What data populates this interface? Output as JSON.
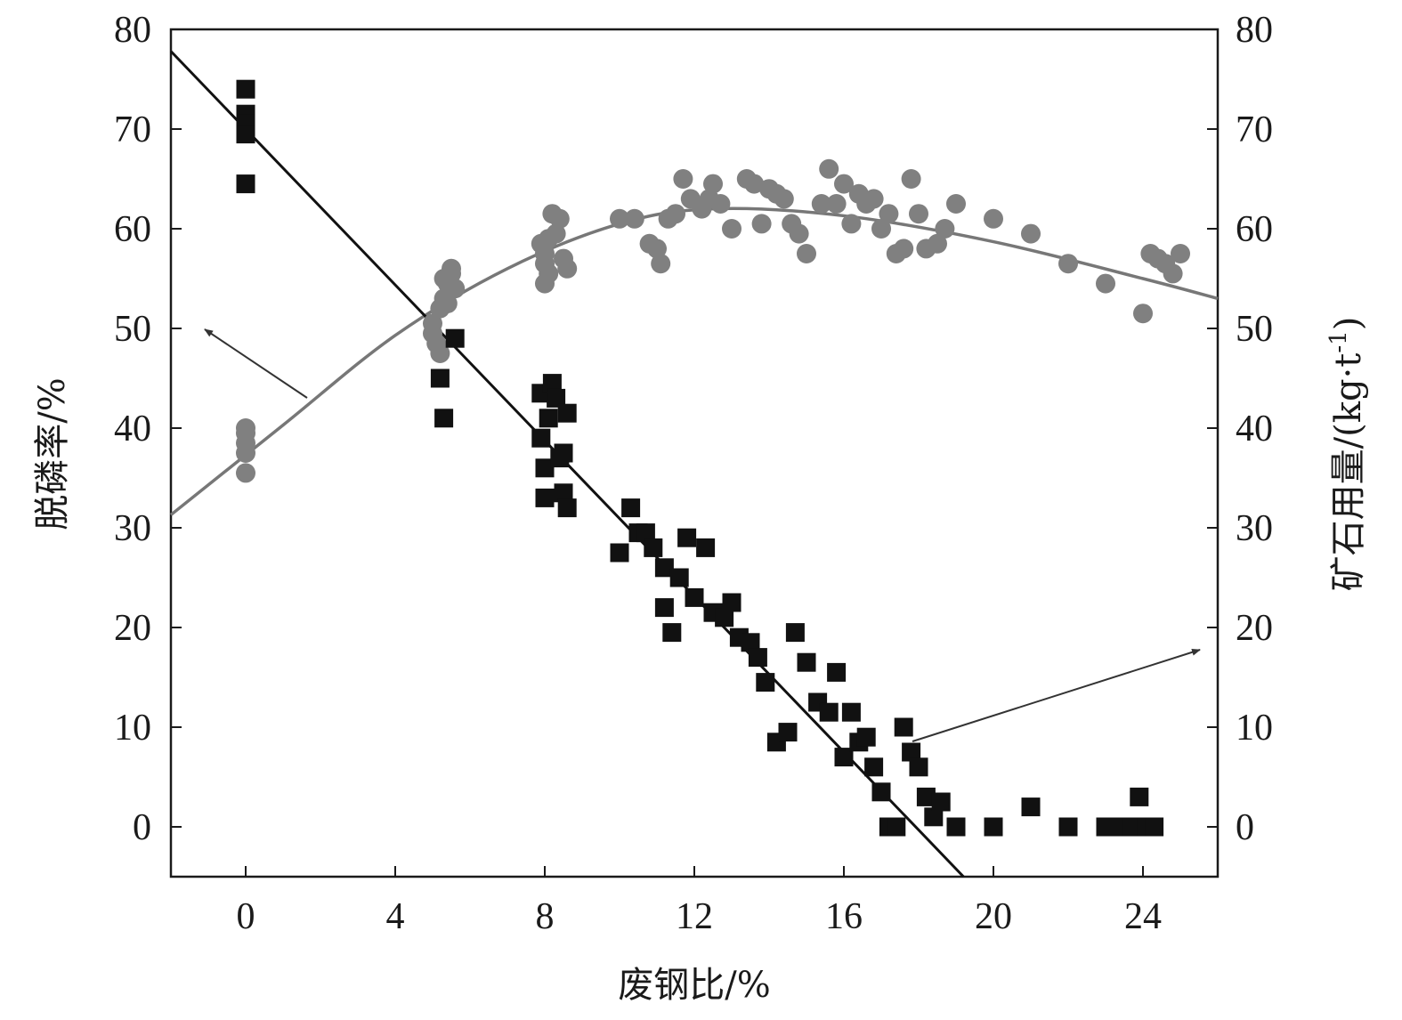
{
  "chart_data": {
    "type": "scatter",
    "title": "",
    "xlabel": "废钢比/%",
    "ylabel_left": "脱磷率/%",
    "ylabel_right_main": "矿石用量/(kg·t",
    "ylabel_right_sup": "-1",
    "ylabel_right_close": ")",
    "xlim": [
      -2,
      26
    ],
    "ylim": [
      -5,
      80
    ],
    "x_ticks": [
      0,
      4,
      8,
      12,
      16,
      20,
      24
    ],
    "y_ticks": [
      0,
      10,
      20,
      30,
      40,
      50,
      60,
      70,
      80
    ],
    "grid": false,
    "legend": "none",
    "series": [
      {
        "marker": "circle",
        "axis": "left",
        "color": "#808080",
        "points": [
          [
            0,
            40
          ],
          [
            0,
            39.5
          ],
          [
            0,
            38.5
          ],
          [
            0,
            37.5
          ],
          [
            0,
            35.5
          ],
          [
            5,
            49.5
          ],
          [
            5.1,
            48.5
          ],
          [
            5.2,
            47.5
          ],
          [
            5,
            50.5
          ],
          [
            5.2,
            52
          ],
          [
            5.3,
            53
          ],
          [
            5.4,
            54.5
          ],
          [
            5.3,
            55
          ],
          [
            5.5,
            55.5
          ],
          [
            5.5,
            56
          ],
          [
            5.6,
            54
          ],
          [
            5.4,
            52.5
          ],
          [
            7.9,
            58.5
          ],
          [
            8,
            57.5
          ],
          [
            8,
            56.5
          ],
          [
            8.1,
            55.5
          ],
          [
            8,
            54.5
          ],
          [
            8.2,
            61.5
          ],
          [
            8.4,
            61
          ],
          [
            8.5,
            57
          ],
          [
            8.6,
            56
          ],
          [
            8.3,
            59.5
          ],
          [
            8.1,
            59
          ],
          [
            10,
            61
          ],
          [
            10.4,
            61
          ],
          [
            10.8,
            58.5
          ],
          [
            11,
            58
          ],
          [
            11.1,
            56.5
          ],
          [
            11.3,
            61
          ],
          [
            11.5,
            61.5
          ],
          [
            11.7,
            65
          ],
          [
            11.9,
            63
          ],
          [
            12.2,
            62
          ],
          [
            12.5,
            64.5
          ],
          [
            12.4,
            63
          ],
          [
            12.7,
            62.5
          ],
          [
            13,
            60
          ],
          [
            13.4,
            65
          ],
          [
            13.6,
            64.5
          ],
          [
            13.8,
            60.5
          ],
          [
            14,
            64
          ],
          [
            14.2,
            63.5
          ],
          [
            14.4,
            63
          ],
          [
            14.6,
            60.5
          ],
          [
            14.8,
            59.5
          ],
          [
            15,
            57.5
          ],
          [
            15.4,
            62.5
          ],
          [
            15.6,
            66
          ],
          [
            15.8,
            62.5
          ],
          [
            16,
            64.5
          ],
          [
            16.2,
            60.5
          ],
          [
            16.4,
            63.5
          ],
          [
            16.6,
            62.5
          ],
          [
            16.8,
            63
          ],
          [
            17,
            60
          ],
          [
            17.2,
            61.5
          ],
          [
            17.4,
            57.5
          ],
          [
            17.6,
            58
          ],
          [
            17.8,
            65
          ],
          [
            18,
            61.5
          ],
          [
            18.2,
            58
          ],
          [
            18.5,
            58.5
          ],
          [
            18.7,
            60
          ],
          [
            19,
            62.5
          ],
          [
            20,
            61
          ],
          [
            21,
            59.5
          ],
          [
            22,
            56.5
          ],
          [
            23,
            54.5
          ],
          [
            24,
            51.5
          ],
          [
            24.2,
            57.5
          ],
          [
            24.4,
            57
          ],
          [
            24.6,
            56.5
          ],
          [
            24.8,
            55.5
          ],
          [
            25,
            57.5
          ]
        ]
      },
      {
        "marker": "square",
        "axis": "right",
        "color": "#111111",
        "points": [
          [
            0,
            74
          ],
          [
            0,
            71.5
          ],
          [
            0,
            70.5
          ],
          [
            0,
            69.5
          ],
          [
            0,
            64.5
          ],
          [
            5.2,
            45
          ],
          [
            5.3,
            41
          ],
          [
            5.6,
            49
          ],
          [
            7.9,
            43.5
          ],
          [
            8.2,
            44.5
          ],
          [
            8.3,
            43
          ],
          [
            8.1,
            41
          ],
          [
            7.9,
            39
          ],
          [
            8,
            36
          ],
          [
            8.4,
            37
          ],
          [
            8.5,
            37.5
          ],
          [
            8.6,
            41.5
          ],
          [
            8.5,
            33.5
          ],
          [
            8.6,
            32
          ],
          [
            8,
            33
          ],
          [
            10,
            27.5
          ],
          [
            10.3,
            32
          ],
          [
            10.5,
            29.5
          ],
          [
            10.7,
            29.5
          ],
          [
            10.9,
            28
          ],
          [
            11.2,
            26
          ],
          [
            11.6,
            25
          ],
          [
            11.2,
            22
          ],
          [
            11.4,
            19.5
          ],
          [
            11.8,
            29
          ],
          [
            12,
            23
          ],
          [
            12.3,
            28
          ],
          [
            12.5,
            21.5
          ],
          [
            12.8,
            21
          ],
          [
            13,
            22.5
          ],
          [
            13.2,
            19
          ],
          [
            13.5,
            18.5
          ],
          [
            13.7,
            17
          ],
          [
            13.9,
            14.5
          ],
          [
            14.2,
            8.5
          ],
          [
            14.5,
            9.5
          ],
          [
            14.7,
            19.5
          ],
          [
            15,
            16.5
          ],
          [
            15.3,
            12.5
          ],
          [
            15.6,
            11.5
          ],
          [
            15.8,
            15.5
          ],
          [
            16,
            7
          ],
          [
            16.2,
            11.5
          ],
          [
            16.4,
            8.5
          ],
          [
            16.6,
            9
          ],
          [
            16.8,
            6
          ],
          [
            17,
            3.5
          ],
          [
            17.2,
            0
          ],
          [
            17.4,
            0
          ],
          [
            17.6,
            10
          ],
          [
            17.8,
            7.5
          ],
          [
            18,
            6
          ],
          [
            18.2,
            3
          ],
          [
            18.4,
            1
          ],
          [
            18.6,
            2.5
          ],
          [
            19,
            0
          ],
          [
            20,
            0
          ],
          [
            21,
            2
          ],
          [
            22,
            0
          ],
          [
            23,
            0
          ],
          [
            23.5,
            0
          ],
          [
            23.7,
            0
          ],
          [
            23.9,
            3
          ],
          [
            24.1,
            0
          ],
          [
            24.3,
            0
          ]
        ]
      }
    ],
    "fit_lines": [
      {
        "kind": "quadratic",
        "color": "#777777",
        "axis": "left",
        "points": [
          [
            -2,
            31.3
          ],
          [
            1,
            40.3
          ],
          [
            4,
            49.3
          ],
          [
            7,
            56
          ],
          [
            10,
            60.5
          ],
          [
            12.5,
            62
          ],
          [
            16,
            61.3
          ],
          [
            20,
            58.7
          ],
          [
            24,
            55
          ],
          [
            26,
            53
          ]
        ]
      },
      {
        "kind": "linear",
        "color": "#111111",
        "axis": "right",
        "points": [
          [
            -2,
            77.8
          ],
          [
            19.2,
            -5
          ]
        ]
      }
    ]
  }
}
